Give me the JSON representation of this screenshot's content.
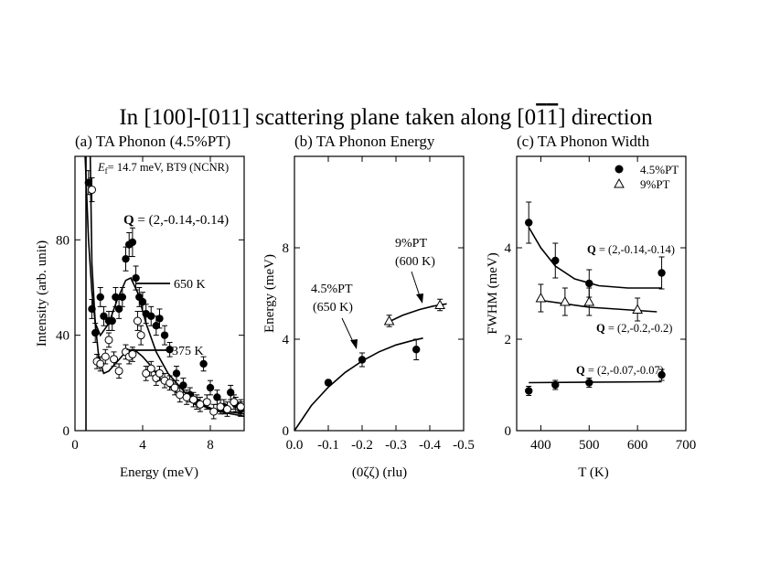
{
  "figure": {
    "title_parts": {
      "pre": "In [100]-[011] scattering plane taken along [0",
      "bar1": "1",
      "bar2": "1",
      "post": "] direction"
    }
  },
  "chart_data": [
    {
      "id": "a",
      "type": "scatter",
      "title": "(a) TA Phonon (4.5%PT)",
      "xlabel": "Energy (meV)",
      "ylabel": "Intensity (arb. unit)",
      "xlim": [
        0,
        10
      ],
      "ylim": [
        0,
        115
      ],
      "x_ticks": [
        0,
        4,
        8
      ],
      "y_ticks": [
        0,
        40,
        80
      ],
      "x_tick_labels": [
        "0",
        "4",
        "8"
      ],
      "y_tick_labels": [
        "0",
        "40",
        "80"
      ],
      "annotation_ef": "= 14.7 meV, BT9 (NCNR)",
      "annotation_ef_symbol": "E",
      "annotation_ef_sub": "f",
      "annotation_q_bold": "Q",
      "annotation_q": " = (2,-0.14,-0.14)",
      "label_650": "650 K",
      "label_375": "375 K",
      "series": [
        {
          "name": "650 K",
          "marker": "filled-circle",
          "points": [
            [
              0.8,
              104,
              5
            ],
            [
              1.0,
              51,
              4
            ],
            [
              1.2,
              41,
              4
            ],
            [
              1.5,
              56,
              4
            ],
            [
              1.7,
              48,
              4
            ],
            [
              2.0,
              46,
              4
            ],
            [
              2.2,
              46,
              4
            ],
            [
              2.4,
              56,
              4
            ],
            [
              2.6,
              51,
              4
            ],
            [
              2.8,
              56,
              4
            ],
            [
              3.0,
              72,
              5
            ],
            [
              3.2,
              78,
              5
            ],
            [
              3.4,
              79,
              6
            ],
            [
              3.6,
              64,
              5
            ],
            [
              3.8,
              56,
              4
            ],
            [
              4.0,
              54,
              4
            ],
            [
              4.2,
              49,
              4
            ],
            [
              4.5,
              48,
              4
            ],
            [
              4.8,
              44,
              4
            ],
            [
              5.0,
              47,
              4
            ],
            [
              5.3,
              40,
              4
            ],
            [
              5.6,
              34,
              3
            ],
            [
              6.0,
              24,
              3
            ],
            [
              6.4,
              19,
              3
            ],
            [
              6.8,
              15,
              3
            ],
            [
              7.2,
              12,
              3
            ],
            [
              7.6,
              28,
              3
            ],
            [
              8.0,
              18,
              3
            ],
            [
              8.4,
              14,
              3
            ],
            [
              8.8,
              10,
              3
            ],
            [
              9.2,
              16,
              3
            ],
            [
              9.5,
              11,
              3
            ],
            [
              9.8,
              9,
              3
            ]
          ]
        },
        {
          "name": "375 K",
          "marker": "open-circle",
          "points": [
            [
              1.0,
              101,
              5
            ],
            [
              1.3,
              29,
              3
            ],
            [
              1.5,
              28,
              3
            ],
            [
              1.8,
              31,
              3
            ],
            [
              2.0,
              38,
              3
            ],
            [
              2.3,
              30,
              3
            ],
            [
              2.6,
              25,
              3
            ],
            [
              3.0,
              33,
              3
            ],
            [
              3.2,
              31,
              3
            ],
            [
              3.4,
              32,
              3
            ],
            [
              3.7,
              46,
              4
            ],
            [
              3.9,
              40,
              4
            ],
            [
              4.2,
              24,
              3
            ],
            [
              4.5,
              26,
              3
            ],
            [
              4.8,
              22,
              3
            ],
            [
              5.0,
              24,
              3
            ],
            [
              5.3,
              21,
              3
            ],
            [
              5.6,
              20,
              3
            ],
            [
              5.9,
              18,
              3
            ],
            [
              6.2,
              15,
              3
            ],
            [
              6.6,
              14,
              3
            ],
            [
              7.0,
              13,
              3
            ],
            [
              7.4,
              11,
              3
            ],
            [
              7.8,
              12,
              3
            ],
            [
              8.2,
              8,
              3
            ],
            [
              8.6,
              10,
              3
            ],
            [
              9.0,
              9,
              3
            ],
            [
              9.4,
              12,
              3
            ],
            [
              9.8,
              10,
              3
            ]
          ]
        }
      ],
      "fits": [
        {
          "name": "650 K fit",
          "points": [
            [
              0.6,
              115
            ],
            [
              0.8,
              80
            ],
            [
              1.0,
              58
            ],
            [
              1.2,
              45
            ],
            [
              1.5,
              40
            ],
            [
              2.0,
              45
            ],
            [
              2.5,
              55
            ],
            [
              3.0,
              63
            ],
            [
              3.3,
              64
            ],
            [
              3.7,
              58
            ],
            [
              4.2,
              45
            ],
            [
              4.8,
              33
            ],
            [
              5.5,
              24
            ],
            [
              6.5,
              16
            ],
            [
              7.5,
              11
            ],
            [
              8.5,
              8
            ],
            [
              10,
              6
            ]
          ]
        },
        {
          "name": "375 K fit",
          "points": [
            [
              0.9,
              115
            ],
            [
              1.0,
              70
            ],
            [
              1.2,
              45
            ],
            [
              1.4,
              31
            ],
            [
              1.7,
              24
            ],
            [
              2.0,
              25
            ],
            [
              2.5,
              29
            ],
            [
              3.0,
              33
            ],
            [
              3.5,
              34
            ],
            [
              4.0,
              31
            ],
            [
              4.5,
              27
            ],
            [
              5.0,
              22
            ],
            [
              6.0,
              16
            ],
            [
              7.0,
              12
            ],
            [
              8.0,
              9
            ],
            [
              10,
              7
            ]
          ]
        }
      ],
      "vertical_line_x": 0.65
    },
    {
      "id": "b",
      "type": "scatter",
      "title": "(b) TA Phonon Energy",
      "xlabel": "(0ζζ) (rlu)",
      "ylabel": "Energy (meV)",
      "xlim": [
        0.0,
        -0.5
      ],
      "ylim": [
        0,
        12
      ],
      "x_ticks": [
        0.0,
        -0.1,
        -0.2,
        -0.3,
        -0.4,
        -0.5
      ],
      "y_ticks": [
        0,
        4,
        8
      ],
      "x_tick_labels": [
        "0.0",
        "-0.1",
        "-0.2",
        "-0.3",
        "-0.4",
        "-0.5"
      ],
      "y_tick_labels": [
        "0",
        "4",
        "8"
      ],
      "label_45_line1": "4.5%PT",
      "label_45_line2": "(650 K)",
      "label_9_line1": "9%PT",
      "label_9_line2": "(600 K)",
      "series": [
        {
          "name": "4.5%PT (650 K)",
          "marker": "filled-circle",
          "points": [
            [
              -0.1,
              2.1,
              0.12
            ],
            [
              -0.2,
              3.1,
              0.3
            ],
            [
              -0.36,
              3.55,
              0.45
            ]
          ]
        },
        {
          "name": "9%PT (600 K)",
          "marker": "open-triangle",
          "points": [
            [
              -0.28,
              4.8,
              0.25
            ],
            [
              -0.43,
              5.5,
              0.25
            ]
          ]
        }
      ],
      "fits": [
        {
          "name": "4.5%PT fit",
          "points": [
            [
              0.0,
              0.0
            ],
            [
              -0.05,
              1.1
            ],
            [
              -0.1,
              1.9
            ],
            [
              -0.15,
              2.55
            ],
            [
              -0.2,
              3.05
            ],
            [
              -0.25,
              3.45
            ],
            [
              -0.3,
              3.75
            ],
            [
              -0.35,
              3.95
            ],
            [
              -0.38,
              4.05
            ]
          ]
        },
        {
          "name": "9%PT fit",
          "points": [
            [
              -0.27,
              4.7
            ],
            [
              -0.32,
              5.05
            ],
            [
              -0.37,
              5.3
            ],
            [
              -0.41,
              5.45
            ],
            [
              -0.45,
              5.55
            ]
          ]
        }
      ]
    },
    {
      "id": "c",
      "type": "scatter",
      "title": "(c) TA Phonon Width",
      "xlabel": "T (K)",
      "ylabel": "FWHM (meV)",
      "xlim": [
        350,
        700
      ],
      "ylim": [
        0,
        6
      ],
      "x_ticks": [
        400,
        500,
        600,
        700
      ],
      "y_ticks": [
        0,
        2,
        4
      ],
      "x_tick_labels": [
        "400",
        "500",
        "600",
        "700"
      ],
      "y_tick_labels": [
        "0",
        "2",
        "4"
      ],
      "legend": [
        {
          "label": "4.5%PT",
          "marker": "filled-circle"
        },
        {
          "label": "9%PT",
          "marker": "open-triangle"
        }
      ],
      "label_q1_bold": "Q",
      "label_q1": " = (2,-0.14,-0.14)",
      "label_q2_bold": "Q",
      "label_q2": " = (2,-0.2,-0.2)",
      "label_q3_bold": "Q",
      "label_q3": " = (2,-0.07,-0.07)",
      "series": [
        {
          "name": "4.5%PT Q=(2,-0.14,-0.14)",
          "marker": "filled-circle",
          "points": [
            [
              375,
              4.55,
              0.45
            ],
            [
              430,
              3.72,
              0.38
            ],
            [
              500,
              3.22,
              0.3
            ],
            [
              650,
              3.45,
              0.35
            ]
          ]
        },
        {
          "name": "9%PT Q=(2,-0.2,-0.2)",
          "marker": "open-triangle",
          "points": [
            [
              400,
              2.9,
              0.3
            ],
            [
              450,
              2.82,
              0.3
            ],
            [
              500,
              2.82,
              0.3
            ],
            [
              600,
              2.65,
              0.25
            ]
          ]
        },
        {
          "name": "4.5%PT Q=(2,-0.07,-0.07)",
          "marker": "filled-circle",
          "points": [
            [
              375,
              0.87,
              0.1
            ],
            [
              430,
              1.0,
              0.1
            ],
            [
              500,
              1.05,
              0.1
            ],
            [
              650,
              1.22,
              0.12
            ]
          ]
        }
      ],
      "fits": [
        {
          "name": "fit Q1",
          "points": [
            [
              375,
              4.45
            ],
            [
              400,
              4.0
            ],
            [
              430,
              3.6
            ],
            [
              470,
              3.32
            ],
            [
              520,
              3.17
            ],
            [
              580,
              3.12
            ],
            [
              650,
              3.12
            ]
          ]
        },
        {
          "name": "fit Q2",
          "points": [
            [
              400,
              2.85
            ],
            [
              500,
              2.7
            ],
            [
              640,
              2.6
            ]
          ]
        },
        {
          "name": "fit Q3",
          "points": [
            [
              375,
              1.05
            ],
            [
              650,
              1.07
            ]
          ]
        }
      ]
    }
  ]
}
